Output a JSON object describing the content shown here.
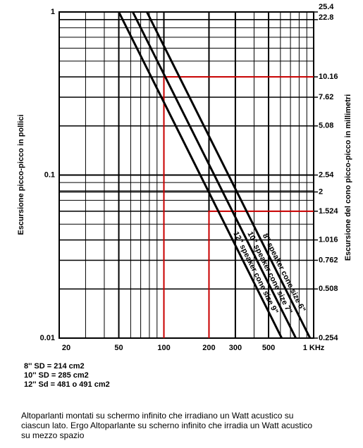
{
  "chart_data": {
    "type": "line",
    "xlabel": null,
    "ylabel": "Escursione picco-picco in pollici",
    "y2label": "Escursione del cono picco-picco  in millimetri",
    "log_x": true,
    "log_y": true,
    "grid": true,
    "xlim": [
      20,
      1000
    ],
    "xticks": [
      20,
      50,
      100,
      200,
      300,
      500,
      {
        "value": 1000,
        "label": "1 KHz"
      }
    ],
    "ylim": [
      0.01,
      1
    ],
    "yticks": [
      0.01,
      0.1,
      1
    ],
    "y2lim": [
      0.254,
      25.4
    ],
    "y2ticks": [
      0.254,
      0.508,
      0.762,
      1.016,
      1.524,
      2,
      2.54,
      5.08,
      7.62,
      10.16,
      22.8,
      25.4
    ],
    "series": [
      {
        "name": "12\" speaker cone size 9\"",
        "color": "#000000",
        "x": [
          50,
          612
        ],
        "values": [
          1,
          0.01
        ]
      },
      {
        "name": "10\" speaker cone size 7\"",
        "color": "#000000",
        "x": [
          62,
          760
        ],
        "values": [
          1,
          0.01
        ]
      },
      {
        "name": "8\" speaker cone size 6\"",
        "color": "#000000",
        "x": [
          77,
          946
        ],
        "values": [
          1,
          0.01
        ]
      }
    ],
    "guides": {
      "color": "#cc0000",
      "x": [
        100,
        200
      ],
      "values": [
        0.4,
        0.06
      ]
    },
    "notes": [
      "8'' SD = 214 cm2",
      "10'' SD = 285 cm2",
      "12'' Sd = 481 o 491 cm2"
    ],
    "caption": [
      "Altoparlanti montati su schermo infinito che irradiano un Watt acustico su",
      "ciascun lato. Ergo Altoparlante su scherno infinito che irradia un Watt acustico",
      "su mezzo spazio"
    ]
  }
}
